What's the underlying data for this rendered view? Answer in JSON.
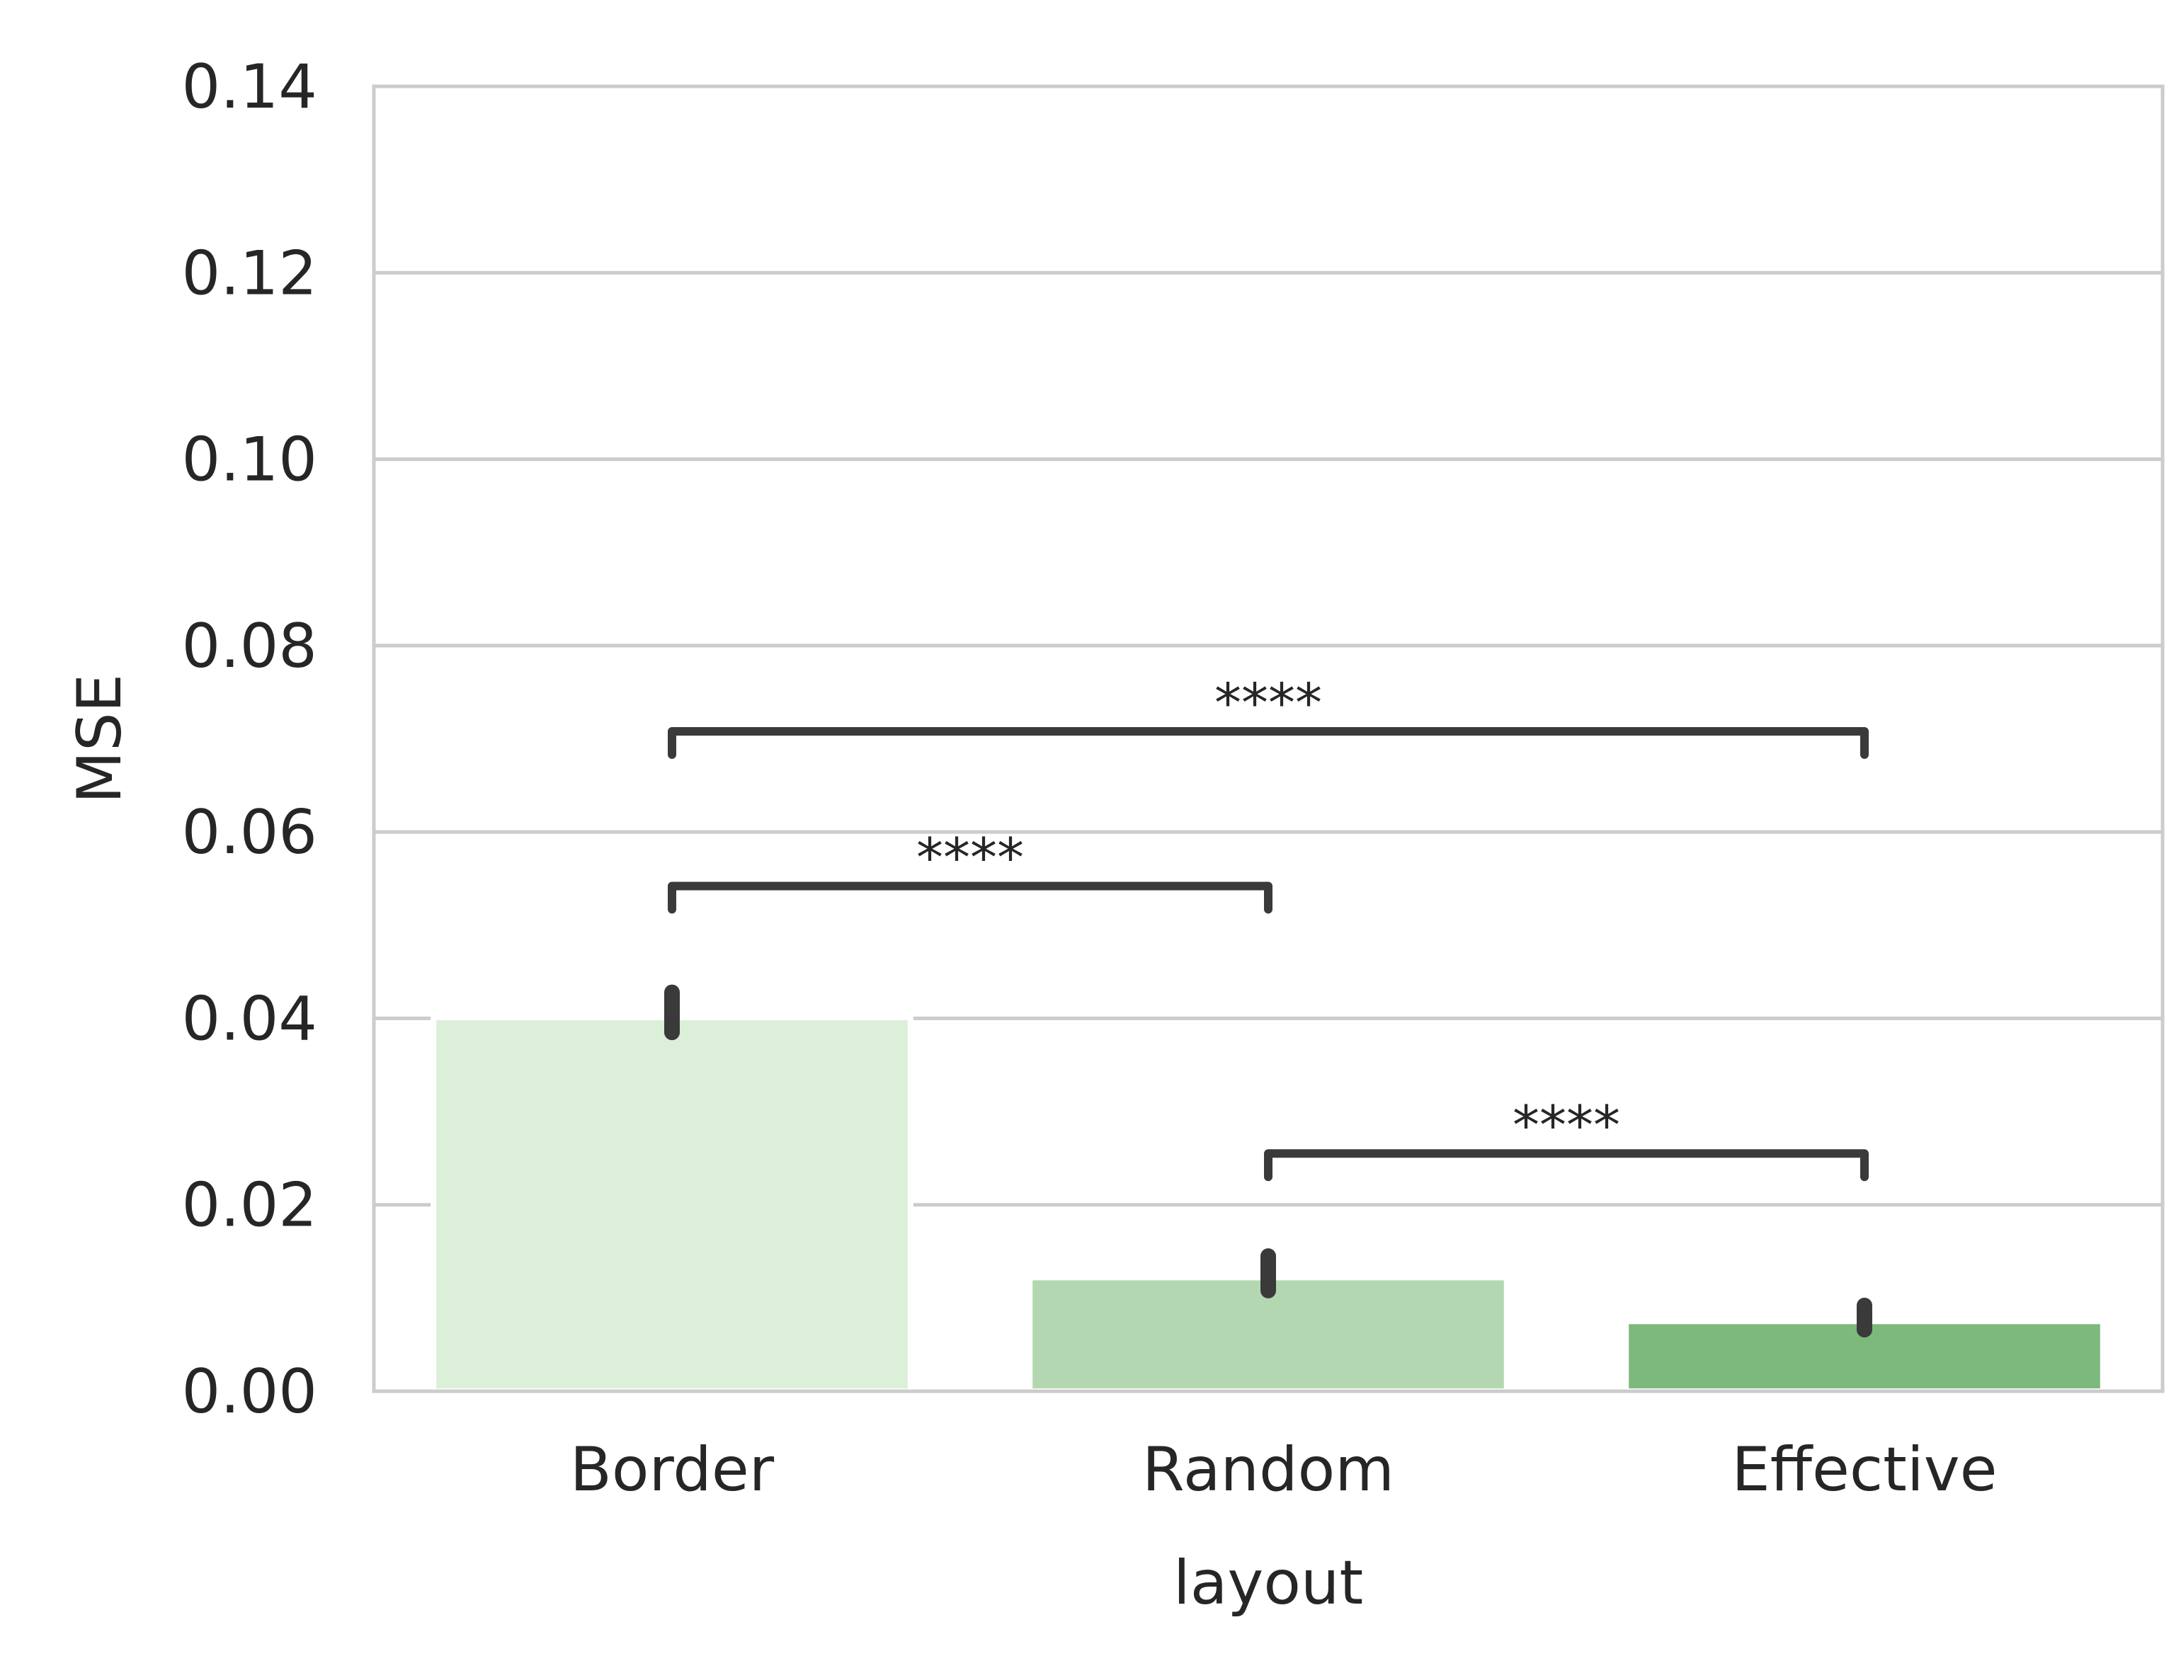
{
  "chart_data": {
    "type": "bar",
    "title": "",
    "xlabel": "layout",
    "ylabel": "MSE",
    "categories": [
      "Border",
      "Random",
      "Effective"
    ],
    "values": [
      0.0401,
      0.0122,
      0.0075
    ],
    "errors": [
      {
        "low": 0.0385,
        "high": 0.0428
      },
      {
        "low": 0.0108,
        "high": 0.0145
      },
      {
        "low": 0.0066,
        "high": 0.0092
      }
    ],
    "colors": [
      "#dcefd9",
      "#b3d8b1",
      "#7db97c"
    ],
    "error_color": "#3a3a3a",
    "ylim": [
      0,
      0.14
    ],
    "yticks": [
      "0.00",
      "0.02",
      "0.04",
      "0.06",
      "0.08",
      "0.10",
      "0.12",
      "0.14"
    ],
    "grid": true,
    "grid_color": "#cccccc",
    "legend": "none",
    "annotations": [
      {
        "from": "Border",
        "to": "Random",
        "label": "****",
        "y": 0.0542
      },
      {
        "from": "Border",
        "to": "Effective",
        "label": "****",
        "y": 0.0708
      },
      {
        "from": "Random",
        "to": "Effective",
        "label": "****",
        "y": 0.0255
      }
    ]
  }
}
